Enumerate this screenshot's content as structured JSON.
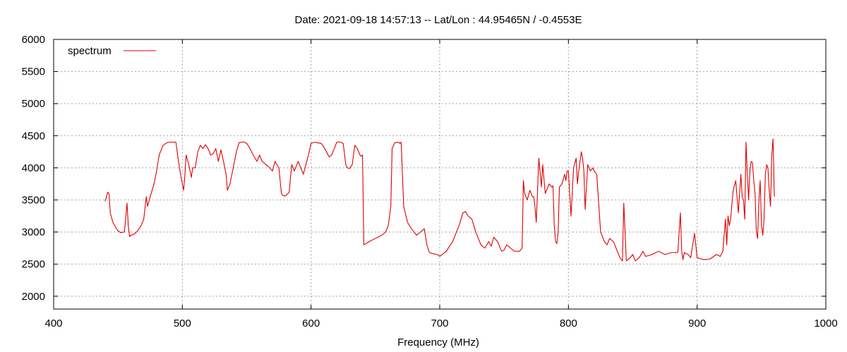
{
  "chart_data": {
    "type": "line",
    "title": "Date: 2021-09-18 14:57:13  --  Lat/Lon : 44.95465N / -0.4553E",
    "xlabel": "Frequency (MHz)",
    "ylabel": "",
    "xlim": [
      400,
      1000
    ],
    "ylim": [
      1800,
      6000
    ],
    "xticks": [
      400,
      500,
      600,
      700,
      800,
      900,
      1000
    ],
    "yticks": [
      2000,
      2500,
      3000,
      3500,
      4000,
      4500,
      5000,
      5500,
      6000
    ],
    "grid": true,
    "legend_position": "top-left",
    "colors": {
      "series": "#dd0000",
      "grid": "#a0a0a0",
      "axes": "#000000"
    },
    "series": [
      {
        "name": "spectrum",
        "x": [
          440,
          441,
          442,
          443,
          444,
          446,
          448,
          450,
          452,
          455,
          457,
          458,
          459,
          460,
          462,
          465,
          468,
          470,
          472,
          473,
          475,
          478,
          480,
          482,
          485,
          488,
          490,
          495,
          497,
          499,
          501,
          502,
          503,
          505,
          507,
          508,
          510,
          512,
          514,
          516,
          518,
          520,
          522,
          524,
          526,
          528,
          530,
          532,
          534,
          535,
          537,
          540,
          542,
          544,
          546,
          548,
          550,
          552,
          555,
          558,
          560,
          562,
          565,
          568,
          570,
          572,
          575,
          577,
          578,
          580,
          583,
          585,
          587,
          590,
          592,
          594,
          596,
          598,
          600,
          603,
          605,
          608,
          610,
          612,
          614,
          616,
          618,
          620,
          623,
          625,
          627,
          628,
          630,
          632,
          634,
          636,
          638,
          639,
          640,
          641,
          643,
          645,
          648,
          650,
          652,
          655,
          658,
          660,
          662,
          663,
          665,
          668,
          669,
          670,
          672,
          675,
          678,
          680,
          682,
          685,
          688,
          690,
          692,
          695,
          698,
          700,
          702,
          705,
          710,
          715,
          718,
          720,
          722,
          725,
          728,
          730,
          732,
          735,
          738,
          740,
          742,
          745,
          748,
          750,
          752,
          755,
          758,
          760,
          762,
          764,
          765,
          766,
          768,
          770,
          772,
          773,
          774,
          775,
          777,
          779,
          780,
          782,
          785,
          787,
          788,
          789,
          790,
          791,
          792,
          793,
          795,
          797,
          798,
          799,
          800,
          802,
          804,
          806,
          807,
          808,
          810,
          811,
          812,
          813,
          815,
          817,
          819,
          820,
          822,
          825,
          828,
          830,
          832,
          835,
          838,
          840,
          842,
          843,
          845,
          848,
          850,
          852,
          855,
          858,
          860,
          865,
          870,
          875,
          880,
          885,
          887,
          888,
          889,
          890,
          893,
          895,
          898,
          900,
          905,
          910,
          915,
          918,
          920,
          922,
          923,
          924,
          925,
          926,
          928,
          930,
          932,
          934,
          935,
          936,
          937,
          938,
          939,
          940,
          941,
          942,
          943,
          944,
          945,
          946,
          947,
          948,
          949,
          950,
          951,
          952,
          953,
          954,
          955,
          956,
          957,
          958,
          959,
          960
        ],
        "values": [
          3480,
          3550,
          3620,
          3600,
          3300,
          3150,
          3080,
          3020,
          2990,
          3000,
          3450,
          3100,
          2930,
          2950,
          2960,
          3010,
          3100,
          3200,
          3550,
          3400,
          3550,
          3750,
          3950,
          4200,
          4350,
          4390,
          4400,
          4400,
          4100,
          3850,
          3650,
          3900,
          4200,
          4050,
          3850,
          4000,
          4000,
          4250,
          4350,
          4300,
          4360,
          4300,
          4200,
          4220,
          4300,
          4100,
          4280,
          4100,
          3900,
          3650,
          3750,
          4050,
          4250,
          4390,
          4400,
          4400,
          4380,
          4320,
          4200,
          4100,
          4200,
          4100,
          4050,
          4000,
          3950,
          4100,
          4000,
          3600,
          3570,
          3560,
          3620,
          4050,
          3950,
          4100,
          4000,
          3900,
          4050,
          4200,
          4380,
          4400,
          4390,
          4380,
          4320,
          4250,
          4170,
          4200,
          4300,
          4400,
          4400,
          4380,
          4050,
          4000,
          3990,
          4050,
          4350,
          4300,
          4200,
          4180,
          4200,
          2800,
          2820,
          2850,
          2880,
          2900,
          2920,
          2950,
          3000,
          3100,
          3400,
          4300,
          4390,
          4400,
          4380,
          4400,
          3400,
          3150,
          3050,
          3000,
          2950,
          3000,
          3050,
          2800,
          2680,
          2660,
          2650,
          2620,
          2650,
          2700,
          2850,
          3100,
          3300,
          3320,
          3250,
          3200,
          3000,
          2900,
          2800,
          2750,
          2850,
          2780,
          2920,
          2850,
          2700,
          2720,
          2800,
          2750,
          2700,
          2700,
          2700,
          2750,
          3800,
          3600,
          3500,
          3650,
          3550,
          3550,
          3400,
          3150,
          4150,
          3700,
          4050,
          3600,
          3750,
          3700,
          3720,
          3100,
          2850,
          2820,
          3000,
          3700,
          3750,
          3900,
          3800,
          3950,
          3950,
          3250,
          4000,
          4150,
          3750,
          3950,
          4250,
          4150,
          3950,
          3350,
          4050,
          3950,
          4000,
          3950,
          3900,
          3000,
          2850,
          2800,
          2900,
          2850,
          2700,
          2600,
          2550,
          3450,
          2550,
          2600,
          2650,
          2550,
          2600,
          2700,
          2620,
          2650,
          2700,
          2650,
          2680,
          2680,
          3300,
          2700,
          2570,
          2680,
          2650,
          2600,
          2980,
          2600,
          2570,
          2580,
          2650,
          2620,
          2700,
          3200,
          2800,
          3250,
          3100,
          3200,
          3650,
          3800,
          3300,
          3900,
          3550,
          3500,
          3200,
          4400,
          3900,
          3500,
          3950,
          4100,
          4080,
          3800,
          3600,
          3000,
          2900,
          3500,
          3800,
          3100,
          2950,
          3200,
          3900,
          4050,
          4000,
          3650,
          3400,
          4200,
          4450,
          3550
        ]
      }
    ]
  }
}
